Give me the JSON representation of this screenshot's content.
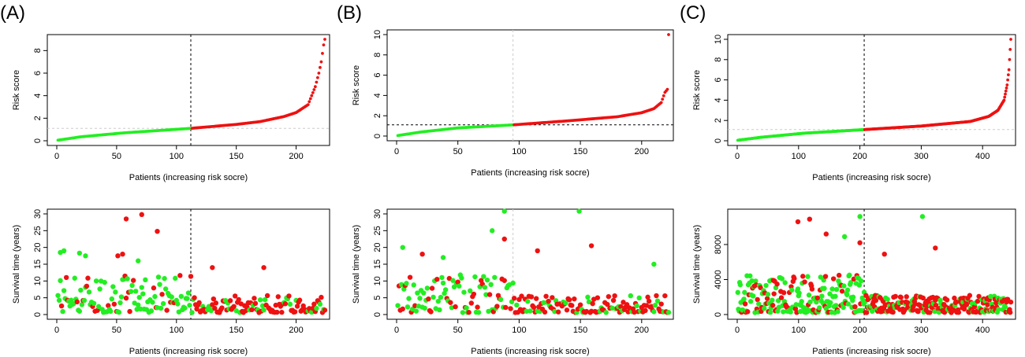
{
  "panel_labels": [
    "(A)",
    "(B)",
    "(C)"
  ],
  "colors": {
    "low_risk": "#22ee22",
    "high_risk": "#ee1111",
    "grid": "#cccccc"
  },
  "chart_data": [
    {
      "panel": "(A)",
      "type": "scatter",
      "plot": "risk_score",
      "xlabel": "Patients (increasing risk socre)",
      "ylabel": "Risk score",
      "n": 224,
      "cutoff_index": 112,
      "cutoff_value": 1.1,
      "xlim": [
        0,
        224
      ],
      "ylim": [
        0,
        9
      ],
      "xticks": [
        0,
        50,
        100,
        150,
        200
      ],
      "yticks": [
        0,
        2,
        4,
        6,
        8
      ],
      "curve": [
        [
          1,
          0.05
        ],
        [
          20,
          0.35
        ],
        [
          56,
          0.7
        ],
        [
          112,
          1.1
        ],
        [
          150,
          1.45
        ],
        [
          170,
          1.7
        ],
        [
          190,
          2.15
        ],
        [
          200,
          2.5
        ],
        [
          210,
          3.2
        ],
        [
          216,
          4.8
        ],
        [
          219,
          6.0
        ],
        [
          221,
          7.0
        ],
        [
          223,
          8.5
        ],
        [
          224,
          9.0
        ]
      ],
      "hline_style": "grey-dashed",
      "vline_style": "black-dashed"
    },
    {
      "panel": "(A)",
      "type": "scatter",
      "plot": "survival_time",
      "xlabel": "Patients (increasing risk socre)",
      "ylabel": "Survival time (years)",
      "n": 224,
      "cutoff_index": 112,
      "xlim": [
        0,
        224
      ],
      "ylim": [
        0,
        30
      ],
      "xticks": [
        0,
        50,
        100,
        150,
        200
      ],
      "yticks": [
        0,
        5,
        10,
        15,
        20,
        25,
        30
      ],
      "outliers": [
        [
          58,
          28.5,
          "high"
        ],
        [
          71,
          29.8,
          "high"
        ],
        [
          84,
          24.8,
          "high"
        ],
        [
          3,
          18.5,
          "low"
        ],
        [
          6,
          19.0,
          "low"
        ],
        [
          19,
          18.3,
          "low"
        ],
        [
          24,
          17.5,
          "low"
        ],
        [
          51,
          17.5,
          "high"
        ],
        [
          55,
          18.0,
          "high"
        ],
        [
          68,
          16.0,
          "low"
        ],
        [
          130,
          14.0,
          "high"
        ],
        [
          173,
          14.0,
          "high"
        ]
      ],
      "vline_style": "black-dashed"
    },
    {
      "panel": "(B)",
      "type": "scatter",
      "plot": "risk_score",
      "xlabel": "Patients (increasing risk socre)",
      "ylabel": "Risk score",
      "n": 222,
      "cutoff_index": 95,
      "cutoff_value": 1.1,
      "xlim": [
        0,
        222
      ],
      "ylim": [
        0,
        10
      ],
      "xticks": [
        0,
        50,
        100,
        150,
        200
      ],
      "yticks": [
        0,
        2,
        4,
        6,
        8,
        10
      ],
      "curve": [
        [
          1,
          0.05
        ],
        [
          20,
          0.4
        ],
        [
          50,
          0.8
        ],
        [
          95,
          1.1
        ],
        [
          140,
          1.5
        ],
        [
          180,
          1.9
        ],
        [
          200,
          2.3
        ],
        [
          210,
          2.7
        ],
        [
          216,
          3.3
        ],
        [
          219,
          4.3
        ],
        [
          221,
          4.6
        ],
        [
          222,
          10.0
        ]
      ],
      "hline_style": "black-dashed",
      "vline_style": "grey-dashed"
    },
    {
      "panel": "(B)",
      "type": "scatter",
      "plot": "survival_time",
      "xlabel": "Patients (increasing risk socre)",
      "ylabel": "Survival time (years)",
      "n": 222,
      "cutoff_index": 95,
      "xlim": [
        0,
        222
      ],
      "ylim": [
        0,
        30
      ],
      "xticks": [
        0,
        50,
        100,
        150,
        200
      ],
      "yticks": [
        0,
        5,
        10,
        15,
        20,
        25,
        30
      ],
      "outliers": [
        [
          88,
          30.8,
          "low"
        ],
        [
          149,
          30.8,
          "low"
        ],
        [
          88,
          22.5,
          "high"
        ],
        [
          78,
          25.0,
          "low"
        ],
        [
          159,
          20.5,
          "high"
        ],
        [
          5,
          20.0,
          "low"
        ],
        [
          115,
          19.0,
          "high"
        ],
        [
          21,
          18.0,
          "high"
        ],
        [
          38,
          17.0,
          "low"
        ],
        [
          210,
          15.0,
          "low"
        ]
      ],
      "vline_style": "grey-dashed"
    },
    {
      "panel": "(C)",
      "type": "scatter",
      "plot": "risk_score",
      "xlabel": "Patients (increasing risk socre)",
      "ylabel": "Risk score",
      "n": 446,
      "cutoff_index": 207,
      "cutoff_value": 1.1,
      "xlim": [
        0,
        446
      ],
      "ylim": [
        0,
        10
      ],
      "xticks": [
        0,
        100,
        200,
        300,
        400
      ],
      "yticks": [
        0,
        2,
        4,
        6,
        8,
        10
      ],
      "curve": [
        [
          1,
          0.05
        ],
        [
          40,
          0.35
        ],
        [
          110,
          0.75
        ],
        [
          207,
          1.1
        ],
        [
          300,
          1.45
        ],
        [
          380,
          1.9
        ],
        [
          410,
          2.4
        ],
        [
          425,
          3.0
        ],
        [
          435,
          4.0
        ],
        [
          440,
          5.5
        ],
        [
          443,
          7.0
        ],
        [
          445,
          9.0
        ],
        [
          446,
          10.0
        ]
      ],
      "hline_style": "grey-dashed",
      "vline_style": "black-dashed"
    },
    {
      "panel": "(C)",
      "type": "scatter",
      "plot": "survival_time",
      "xlabel": "Patients (increasing risk socre)",
      "ylabel": "Survival time (years)",
      "n": 446,
      "cutoff_index": 207,
      "xlim": [
        0,
        446
      ],
      "ylim": [
        0,
        11500
      ],
      "xticks": [
        0,
        100,
        200,
        300,
        400
      ],
      "yticks": [
        0,
        4000,
        8000
      ],
      "outliers": [
        [
          200,
          11200,
          "low"
        ],
        [
          302,
          11200,
          "low"
        ],
        [
          118,
          10900,
          "high"
        ],
        [
          99,
          10600,
          "high"
        ],
        [
          145,
          9200,
          "high"
        ],
        [
          175,
          8900,
          "low"
        ],
        [
          200,
          8200,
          "high"
        ],
        [
          323,
          7600,
          "high"
        ],
        [
          240,
          6900,
          "high"
        ]
      ],
      "vline_style": "black-dashed"
    }
  ]
}
